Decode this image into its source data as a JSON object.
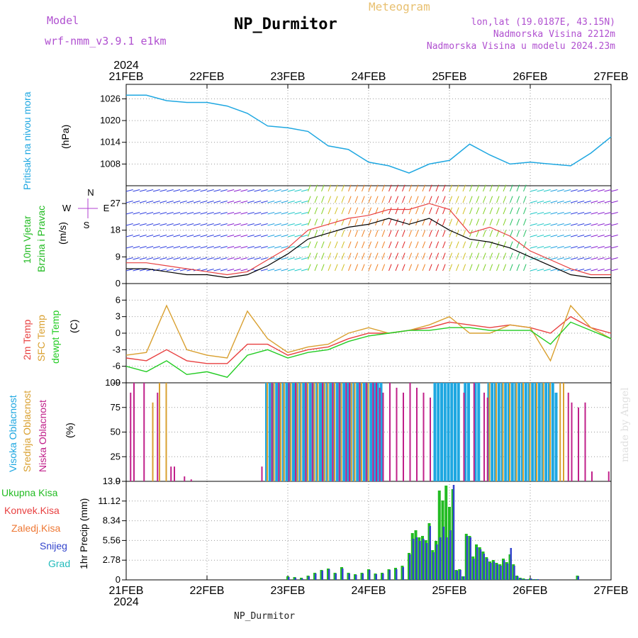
{
  "header": {
    "model_label": "Model",
    "model_name": "wrf-nmm_v3.9.1 e1km",
    "title": "NP_Durmitor",
    "subtitle": "Meteogram",
    "lonlat": "lon,lat (19.0187E, 43.15N)",
    "altitude": "Nadmorska Visina 2212m",
    "model_altitude": "Nadmorska Visina u modelu 2024.23m",
    "footer": "NP_Durmitor",
    "credit": "made by Angel",
    "year": "2024"
  },
  "colors": {
    "pressure": "#1ea7e1",
    "wind_label": "#22bb22",
    "compass": "#b040d0",
    "t2m": "#e84040",
    "tsfc": "#d9a030",
    "dewpt": "#22cc22",
    "cloud_high": "#1ea7e1",
    "cloud_mid": "#d9a030",
    "cloud_low": "#c0208a",
    "precip_total": "#22bb22",
    "precip_conv": "#e84040",
    "precip_snow": "#3344cc",
    "precip_zaledj": "#ee7733",
    "precip_grad": "#22bbbb"
  },
  "chart_data": [
    {
      "type": "line",
      "panel": "pressure",
      "ylabel_left": "Pritisak na nivou mora",
      "ylabel_unit": "(hPa)",
      "ylim": [
        1002,
        1030
      ],
      "yticks": [
        1008,
        1014,
        1020,
        1026
      ],
      "x_dates": [
        "21FEB",
        "22FEB",
        "23FEB",
        "24FEB",
        "25FEB",
        "26FEB",
        "27FEB"
      ],
      "x_hours": [
        0,
        6,
        12,
        18,
        24,
        30,
        36,
        42,
        48,
        54,
        60,
        66,
        72,
        78,
        84,
        90,
        96,
        102,
        108,
        114,
        120,
        126,
        132,
        138,
        144
      ],
      "series": [
        {
          "values": [
            1027,
            1027,
            1025.5,
            1025,
            1025,
            1024,
            1022,
            1018.5,
            1018,
            1017,
            1013,
            1012,
            1008.5,
            1007.5,
            1005.5,
            1008,
            1009,
            1013.5,
            1010.5,
            1008,
            1008.5,
            1008,
            1007.5,
            1011,
            1015.5
          ]
        }
      ]
    },
    {
      "type": "line",
      "panel": "wind",
      "ylabel_left": [
        "10m Vjetar",
        "Brzina i Pravac"
      ],
      "ylabel_unit": "(m/s)",
      "compass": [
        "N",
        "E",
        "W",
        "S"
      ],
      "ylim": [
        0,
        33
      ],
      "yticks": [
        0,
        9,
        18,
        27
      ],
      "x_hours": [
        0,
        6,
        12,
        18,
        24,
        30,
        36,
        42,
        48,
        54,
        60,
        66,
        72,
        78,
        84,
        90,
        96,
        102,
        108,
        114,
        120,
        126,
        132,
        138,
        144
      ],
      "series": [
        {
          "name": "speed",
          "values": [
            5,
            5,
            4,
            3,
            3,
            2,
            3,
            6,
            10,
            15,
            17,
            19,
            20,
            22,
            20,
            22,
            18,
            15,
            14,
            12,
            9,
            6,
            3,
            2,
            2
          ]
        },
        {
          "name": "gust",
          "values": [
            7,
            7,
            6,
            5,
            4,
            3,
            4,
            8,
            12,
            18,
            20,
            22,
            23,
            25,
            25,
            27,
            25,
            17,
            19,
            16,
            11,
            8,
            5,
            3,
            3
          ]
        }
      ]
    },
    {
      "type": "line",
      "panel": "temperature",
      "ylabel_left": [
        "2m Temp",
        "SFC Temp",
        "dewpt Temp"
      ],
      "ylabel_unit": "(C)",
      "ylim": [
        -9,
        9
      ],
      "yticks": [
        -9,
        -6,
        -3,
        0,
        3,
        6
      ],
      "x_hours": [
        0,
        6,
        12,
        18,
        24,
        30,
        36,
        42,
        48,
        54,
        60,
        66,
        72,
        78,
        84,
        90,
        96,
        102,
        108,
        114,
        120,
        126,
        132,
        138,
        144
      ],
      "series": [
        {
          "name": "2m Temp",
          "values": [
            -4.5,
            -5,
            -3,
            -5,
            -5.5,
            -5.5,
            -2,
            -2,
            -4,
            -3,
            -2.5,
            -1,
            0,
            0,
            0.5,
            1,
            2,
            1.5,
            1,
            1.5,
            1,
            0,
            3,
            1,
            0
          ]
        },
        {
          "name": "SFC Temp",
          "values": [
            -4,
            -3.5,
            5,
            -3,
            -4,
            -4.5,
            4,
            -1,
            -3.5,
            -2.5,
            -2,
            0,
            1,
            0,
            0.5,
            1.5,
            3,
            0,
            0,
            1.5,
            1,
            -5,
            5,
            1,
            -1
          ]
        },
        {
          "name": "dewpt Temp",
          "values": [
            -6,
            -7,
            -5,
            -7.5,
            -7,
            -8,
            -4,
            -3,
            -4.5,
            -3.5,
            -3,
            -1.5,
            -0.5,
            0,
            0.5,
            0.5,
            1,
            1,
            0.5,
            0.5,
            0.5,
            -2,
            2,
            0.5,
            -1
          ]
        }
      ]
    },
    {
      "type": "bar",
      "panel": "clouds",
      "ylabel_left": [
        "Visoka Oblacnost",
        "Srednja Oblacnost",
        "Niska Oblacnost"
      ],
      "ylabel_unit": "(%)",
      "ylim": [
        0,
        100
      ],
      "yticks": [
        0,
        25,
        50,
        75,
        100
      ],
      "x_hours": [
        1,
        2,
        5,
        8,
        9,
        10,
        12,
        13,
        14,
        17,
        19,
        40,
        42,
        43,
        44,
        45,
        46,
        47,
        48,
        49,
        50,
        51,
        52,
        53,
        54,
        55,
        56,
        57,
        58,
        59,
        60,
        61,
        62,
        63,
        64,
        65,
        66,
        67,
        68,
        69,
        70,
        71,
        72,
        73,
        74,
        75,
        76,
        78,
        80,
        82,
        84,
        86,
        88,
        90,
        92,
        93,
        94,
        95,
        96,
        97,
        98,
        99,
        100,
        101,
        102,
        103,
        104,
        105,
        106,
        107,
        108,
        109,
        110,
        111,
        112,
        113,
        114,
        115,
        116,
        117,
        118,
        119,
        120,
        121,
        122,
        123,
        124,
        125,
        126,
        127,
        128,
        129,
        130,
        131,
        132,
        134,
        136,
        138,
        143
      ],
      "series": [
        {
          "name": "Visoka Oblacnost",
          "values": [
            0,
            0,
            0,
            0,
            0,
            0,
            0,
            0,
            0,
            0,
            0,
            0,
            100,
            100,
            100,
            100,
            100,
            100,
            100,
            100,
            100,
            100,
            100,
            100,
            100,
            100,
            100,
            100,
            100,
            100,
            100,
            100,
            100,
            100,
            100,
            100,
            100,
            100,
            100,
            100,
            100,
            100,
            100,
            100,
            100,
            100,
            100,
            0,
            0,
            0,
            0,
            0,
            0,
            0,
            100,
            100,
            100,
            100,
            100,
            100,
            100,
            100,
            0,
            100,
            100,
            0,
            100,
            100,
            0,
            0,
            100,
            100,
            100,
            100,
            100,
            100,
            100,
            100,
            100,
            100,
            100,
            100,
            100,
            100,
            100,
            100,
            100,
            100,
            100,
            100,
            90,
            0,
            0,
            0,
            0,
            0,
            0,
            0,
            0
          ]
        },
        {
          "name": "Srednja Oblacnost",
          "values": [
            0,
            0,
            0,
            80,
            0,
            100,
            100,
            0,
            0,
            0,
            0,
            0,
            100,
            0,
            100,
            0,
            100,
            100,
            0,
            100,
            0,
            100,
            100,
            0,
            100,
            0,
            100,
            100,
            0,
            100,
            100,
            0,
            100,
            0,
            100,
            0,
            0,
            100,
            100,
            0,
            100,
            0,
            100,
            0,
            0,
            0,
            0,
            0,
            0,
            0,
            0,
            0,
            0,
            0,
            0,
            0,
            0,
            0,
            0,
            0,
            0,
            0,
            0,
            0,
            0,
            0,
            0,
            0,
            0,
            0,
            100,
            0,
            100,
            0,
            100,
            0,
            100,
            0,
            100,
            0,
            100,
            0,
            100,
            0,
            100,
            0,
            100,
            0,
            100,
            0,
            0,
            100,
            100,
            0,
            0,
            0,
            0,
            0,
            0
          ]
        },
        {
          "name": "Niska Oblacnost",
          "values": [
            90,
            100,
            100,
            0,
            90,
            0,
            0,
            15,
            15,
            5,
            2,
            15,
            0,
            100,
            0,
            100,
            0,
            0,
            100,
            0,
            100,
            0,
            0,
            100,
            0,
            100,
            0,
            0,
            100,
            0,
            0,
            100,
            0,
            100,
            0,
            100,
            100,
            0,
            0,
            100,
            0,
            100,
            0,
            100,
            100,
            95,
            90,
            100,
            95,
            90,
            100,
            95,
            90,
            85,
            0,
            0,
            0,
            0,
            0,
            0,
            0,
            0,
            90,
            0,
            0,
            100,
            0,
            0,
            90,
            85,
            0,
            0,
            0,
            0,
            0,
            0,
            0,
            0,
            0,
            0,
            0,
            0,
            0,
            0,
            0,
            0,
            0,
            0,
            0,
            0,
            0,
            0,
            0,
            90,
            80,
            75,
            80,
            10,
            10
          ]
        }
      ]
    },
    {
      "type": "bar",
      "panel": "precipitation",
      "ylabel_unit": "1hr Precip (mm)",
      "legend": [
        "Ukupna Kisa",
        "Konvek.Kisa",
        "Zaledj.Kisa",
        "Snijeg",
        "Grad"
      ],
      "ylim": [
        0,
        13.9
      ],
      "yticks": [
        0,
        2.78,
        5.56,
        8.34,
        11.12,
        13.9
      ],
      "x_hours": [
        48,
        50,
        52,
        54,
        56,
        58,
        60,
        62,
        64,
        66,
        68,
        70,
        72,
        74,
        76,
        78,
        80,
        82,
        84,
        85,
        86,
        87,
        88,
        89,
        90,
        91,
        92,
        93,
        94,
        95,
        96,
        97,
        98,
        99,
        100,
        101,
        102,
        103,
        104,
        105,
        106,
        107,
        108,
        109,
        110,
        111,
        112,
        113,
        114,
        115,
        116,
        117,
        118,
        119,
        120,
        121,
        122,
        134
      ],
      "series": [
        {
          "name": "Ukupna Kisa",
          "values": [
            0.5,
            0.4,
            0.3,
            0.6,
            1.0,
            1.4,
            1.6,
            1.0,
            1.8,
            1.0,
            0.8,
            1.0,
            1.5,
            0.9,
            1.0,
            1.5,
            1.7,
            2.0,
            3.8,
            6.6,
            7.0,
            6.0,
            6.2,
            5.6,
            8.0,
            4.2,
            5.5,
            12.6,
            11.2,
            13.3,
            10.3,
            12.8,
            1.4,
            1.5,
            0.5,
            6.5,
            6.2,
            3.3,
            5.0,
            4.6,
            4.0,
            3.2,
            2.6,
            2.8,
            2.4,
            2.2,
            3.0,
            2.5,
            3.6,
            2.2,
            0.6,
            0.3,
            0.2,
            0.1,
            0.2,
            0.1,
            0.1,
            0.6
          ]
        },
        {
          "name": "Snijeg",
          "values": [
            0.4,
            0.3,
            0.2,
            0.5,
            0.9,
            1.3,
            1.5,
            0.9,
            1.6,
            0.9,
            0.7,
            0.9,
            1.4,
            0.8,
            0.9,
            1.4,
            1.5,
            1.8,
            3.6,
            5.8,
            6.0,
            5.5,
            5.8,
            5.2,
            7.6,
            3.9,
            5.0,
            6.0,
            7.5,
            6.0,
            7.0,
            13.4,
            1.3,
            1.4,
            0.5,
            6.2,
            6.0,
            3.0,
            4.6,
            4.3,
            3.7,
            3.0,
            2.4,
            2.6,
            2.2,
            2.0,
            2.8,
            2.3,
            4.5,
            2.0,
            0.5,
            0.2,
            0.1,
            0.1,
            0.2,
            0.1,
            0.1,
            0.5
          ]
        }
      ]
    }
  ]
}
